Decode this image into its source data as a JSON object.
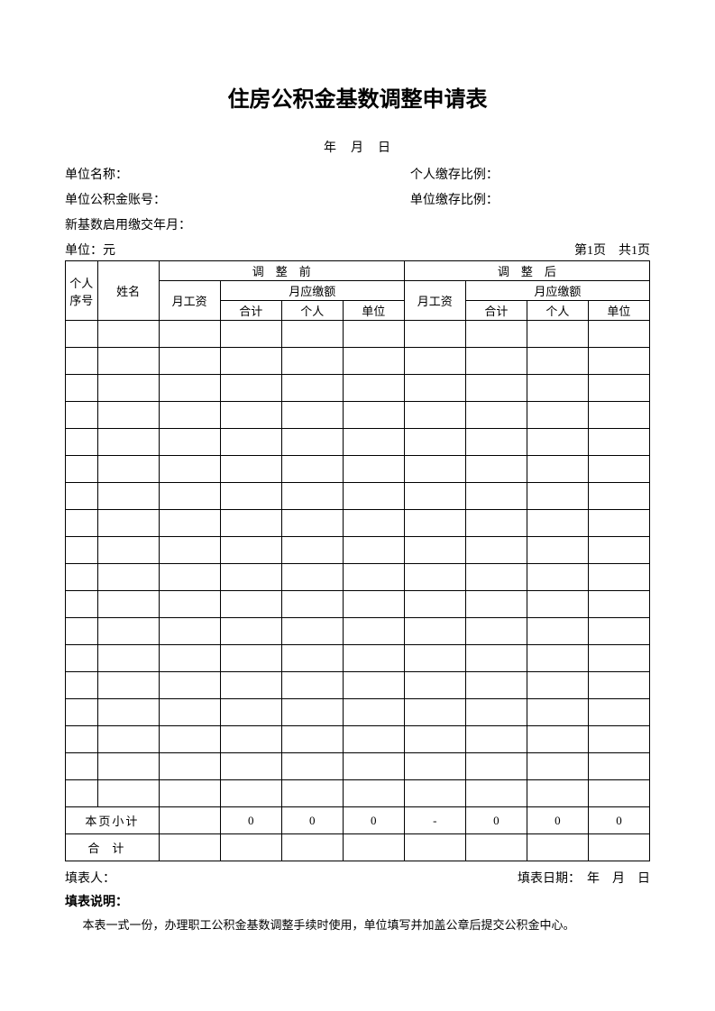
{
  "title": "住房公积金基数调整申请表",
  "date_line": "年　月　日",
  "meta": {
    "org_name_label": "单位名称：",
    "personal_ratio_label": "个人缴存比例：",
    "org_account_label": "单位公积金账号：",
    "org_ratio_label": "单位缴存比例：",
    "new_base_label": "新基数启用缴交年月：",
    "unit_label": "单位：元",
    "page_label": "第1页　共1页"
  },
  "table": {
    "h_seq": "个人序号",
    "h_name": "姓名",
    "h_before": "调　整　前",
    "h_after": "调　整　后",
    "h_wage": "月工资",
    "h_monthly": "月应缴额",
    "h_total": "合计",
    "h_personal": "个人",
    "h_org": "单位",
    "subtotal_label": "本页小计",
    "total_label": "合计",
    "subtotal": {
      "b_total": "0",
      "b_personal": "0",
      "b_org": "0",
      "a_wage": "-",
      "a_total": "0",
      "a_personal": "0",
      "a_org": "0"
    },
    "empty_rows": 18
  },
  "footer": {
    "preparer_label": "填表人：",
    "date_label": "填表日期：　年　月　日"
  },
  "instructions": {
    "label": "填表说明：",
    "text": "本表一式一份，办理职工公积金基数调整手续时使用，单位填写并加盖公章后提交公积金中心。"
  },
  "style": {
    "background_color": "#ffffff",
    "text_color": "#000000",
    "border_color": "#000000",
    "title_fontsize": 24,
    "body_fontsize": 14,
    "table_fontsize": 13
  }
}
